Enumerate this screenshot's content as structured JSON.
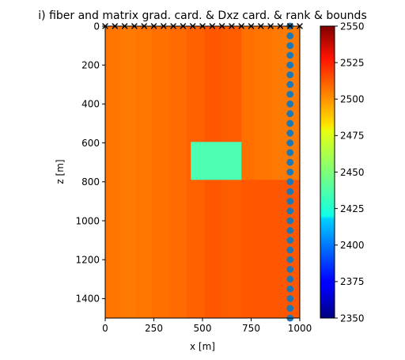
{
  "chart_data": {
    "type": "heatmap",
    "title": "i) fiber and matrix grad. card. & Dxz card. & rank & bounds",
    "xlabel": "x [m]",
    "ylabel": "z [m]",
    "xlim": [
      0,
      1000
    ],
    "zlim": [
      0,
      1500
    ],
    "x_ticks": [
      0,
      250,
      500,
      750,
      1000
    ],
    "z_ticks": [
      0,
      200,
      400,
      600,
      800,
      1000,
      1200,
      1400
    ],
    "colorbar": {
      "colormap": "jet",
      "range": [
        2350,
        2550
      ],
      "ticks": [
        2350,
        2375,
        2400,
        2425,
        2450,
        2475,
        2500,
        2525,
        2550
      ]
    },
    "background_value": 2501,
    "column_values": [
      {
        "x": [
          0,
          80
        ],
        "value": 2502
      },
      {
        "x": [
          80,
          160
        ],
        "value": 2501
      },
      {
        "x": [
          160,
          240
        ],
        "value": 2502
      },
      {
        "x": [
          240,
          330
        ],
        "value": 2503
      },
      {
        "x": [
          330,
          420
        ],
        "value": 2504
      },
      {
        "x": [
          420,
          510
        ],
        "value": 2506
      },
      {
        "x": [
          510,
          600
        ],
        "value": 2508
      },
      {
        "x": [
          600,
          700
        ],
        "value": 2507
      },
      {
        "x": [
          700,
          770
        ],
        "value": 2503
      },
      {
        "x": [
          770,
          860
        ],
        "value": 2502
      },
      {
        "x": [
          860,
          1000
        ],
        "value": 2501
      }
    ],
    "anomalies": [
      {
        "x": [
          440,
          700
        ],
        "z": [
          595,
          790
        ],
        "value": 2440
      },
      {
        "x": [
          700,
          1000
        ],
        "z": [
          790,
          1500
        ],
        "value": 2508
      }
    ],
    "x_markers": {
      "symbol": "x",
      "z": 0,
      "x": [
        0,
        50,
        100,
        150,
        200,
        250,
        300,
        350,
        400,
        450,
        500,
        550,
        600,
        650,
        700,
        750,
        800,
        850,
        900,
        950,
        1000
      ]
    },
    "receivers": {
      "symbol": "circle",
      "color": "#1f77b4",
      "x": 950,
      "z": [
        0,
        50,
        100,
        150,
        200,
        250,
        300,
        350,
        400,
        450,
        500,
        550,
        600,
        650,
        700,
        750,
        800,
        850,
        900,
        950,
        1000,
        1050,
        1100,
        1150,
        1200,
        1250,
        1300,
        1350,
        1400,
        1450,
        1500
      ]
    }
  }
}
